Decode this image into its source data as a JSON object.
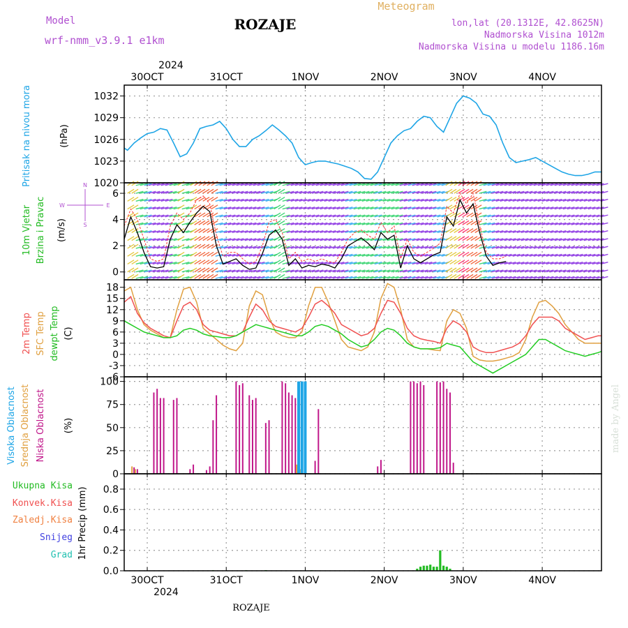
{
  "header": {
    "model_label": "Model",
    "model_name": "wrf-nmm_v3.9.1 e1km",
    "station": "ROZAJE",
    "product": "Meteogram",
    "coords": "lon,lat (20.1312E, 42.8625N)",
    "elevation": "Nadmorska Visina 1012m",
    "model_elevation": "Nadmorska Visina u modelu 1186.16m",
    "footer_station": "ROZAJE",
    "watermark": "made by Angel"
  },
  "time_axis": {
    "year": "2024",
    "day_labels": [
      "30OCT",
      "31OCT",
      "1NOV",
      "2NOV",
      "3NOV",
      "4NOV"
    ],
    "start_hour": -7,
    "end_hour": 138
  },
  "colors": {
    "pressure": "#1ea5e6",
    "wind_speed": "#000000",
    "wind_gust": "#ff3030",
    "temp_2m": "#f05050",
    "temp_sfc": "#e0a040",
    "dewpoint": "#22cc22",
    "cloud_high": "#1ea5e6",
    "cloud_mid": "#e0a040",
    "cloud_low": "#c0178a",
    "precip": "#22bb22",
    "grid": "#999999"
  },
  "labels": {
    "pressure": [
      "Pritisak na nivou mora",
      "(hPa)"
    ],
    "wind": [
      "10m Vjetar",
      "Brzina i Pravac",
      "(m/s)"
    ],
    "wind_compass": [
      "N",
      "W",
      "E",
      "S"
    ],
    "temp": [
      "2m Temp",
      "SFC Temp",
      "dewpt Temp",
      "(C)"
    ],
    "cloud": [
      "Visoka Oblacnost",
      "Srednja Oblacnost",
      "Niska Oblacnost",
      "(%)"
    ],
    "precip_legend": [
      "Ukupna Kisa",
      "Konvek.Kisa",
      "Zaledj.Kisa",
      "Snijeg",
      "Grad"
    ],
    "precip_axis": "1hr Precip (mm)"
  },
  "chart_data": [
    {
      "type": "line",
      "name": "pressure",
      "ylabel": "(hPa)",
      "ylim": [
        1020,
        1033.5
      ],
      "yticks": [
        1020,
        1023,
        1026,
        1029,
        1032
      ],
      "x": [
        -7,
        -6,
        -4,
        -2,
        0,
        2,
        4,
        6,
        8,
        10,
        12,
        14,
        16,
        18,
        20,
        22,
        24,
        26,
        28,
        30,
        32,
        34,
        36,
        38,
        40,
        42,
        44,
        46,
        48,
        50,
        52,
        54,
        56,
        58,
        60,
        62,
        64,
        66,
        68,
        70,
        72,
        74,
        76,
        78,
        80,
        82,
        84,
        86,
        88,
        90,
        92,
        94,
        96,
        98,
        100,
        102,
        104,
        106,
        108,
        110,
        112,
        114,
        116,
        118,
        120,
        122,
        124,
        126,
        128,
        130,
        132,
        134,
        136,
        138
      ],
      "values": [
        1024.8,
        1024.5,
        1025.5,
        1026.2,
        1026.8,
        1027.0,
        1027.5,
        1027.3,
        1025.5,
        1023.6,
        1024.0,
        1025.5,
        1027.5,
        1027.8,
        1028.0,
        1028.5,
        1027.5,
        1026.0,
        1025.0,
        1025.0,
        1026.0,
        1026.5,
        1027.2,
        1028.0,
        1027.3,
        1026.5,
        1025.5,
        1023.5,
        1022.5,
        1022.8,
        1023.0,
        1023.0,
        1022.8,
        1022.6,
        1022.3,
        1022.0,
        1021.5,
        1020.6,
        1020.5,
        1021.5,
        1023.5,
        1025.5,
        1026.5,
        1027.2,
        1027.5,
        1028.5,
        1029.2,
        1029.0,
        1027.8,
        1027.0,
        1029.0,
        1031.0,
        1032.0,
        1031.7,
        1031.0,
        1029.5,
        1029.2,
        1028.0,
        1025.5,
        1023.5,
        1022.8,
        1023.0,
        1023.2,
        1023.5,
        1023.0,
        1022.5,
        1022.0,
        1021.5,
        1021.2,
        1021.0,
        1021.0,
        1021.2,
        1021.5,
        1021.5
      ]
    },
    {
      "type": "line",
      "name": "wind",
      "ylabel": "(m/s)",
      "ylim": [
        -0.6,
        6.8
      ],
      "yticks": [
        0,
        2,
        4,
        6
      ],
      "x": [
        -7,
        -5,
        -3,
        -1,
        1,
        3,
        5,
        7,
        9,
        11,
        13,
        15,
        17,
        19,
        21,
        23,
        25,
        27,
        29,
        31,
        33,
        35,
        37,
        39,
        41,
        43,
        45,
        47,
        49,
        51,
        53,
        55,
        57,
        59,
        61,
        63,
        65,
        67,
        69,
        71,
        73,
        75,
        77,
        79,
        81,
        83,
        85,
        87,
        89,
        91,
        93,
        95,
        97,
        99,
        101,
        103,
        105,
        107,
        109
      ],
      "series": [
        {
          "values": [
            2.5,
            4.2,
            3.0,
            1.5,
            0.4,
            0.3,
            0.4,
            2.5,
            3.6,
            3.0,
            3.8,
            4.5,
            5.0,
            4.6,
            2.0,
            0.6,
            0.8,
            1.0,
            0.5,
            0.2,
            0.3,
            1.4,
            2.8,
            3.2,
            2.5,
            0.5,
            1.0,
            0.3,
            0.5,
            0.4,
            0.6,
            0.5,
            0.3,
            1.0,
            2.0,
            2.3,
            2.6,
            2.2,
            1.7,
            3.0,
            2.5,
            2.8,
            0.3,
            2.0,
            1.0,
            0.7,
            1.0,
            1.3,
            1.5,
            4.2,
            3.5,
            5.5,
            4.5,
            5.2,
            3.0,
            1.2,
            0.5,
            0.7,
            0.8
          ]
        },
        {
          "values": [
            3.5,
            4.8,
            4.0,
            2.5,
            1.0,
            0.8,
            1.0,
            3.5,
            4.5,
            4.0,
            4.5,
            5.5,
            5.8,
            5.2,
            2.8,
            1.2,
            1.5,
            1.5,
            1.0,
            0.6,
            0.8,
            2.0,
            3.8,
            4.0,
            3.0,
            1.0,
            1.5,
            0.8,
            1.0,
            0.8,
            1.0,
            0.8,
            0.7,
            1.5,
            2.5,
            3.0,
            3.2,
            2.8,
            2.5,
            3.8,
            3.0,
            3.5,
            1.0,
            2.5,
            1.5,
            1.2,
            1.5,
            1.8,
            2.2,
            5.0,
            4.5,
            6.0,
            5.2,
            6.0,
            3.5,
            1.5,
            1.0,
            1.0,
            1.2
          ]
        }
      ]
    },
    {
      "type": "line",
      "name": "temperature",
      "ylabel": "(C)",
      "ylim": [
        -6,
        20
      ],
      "yticks": [
        -6,
        -3,
        0,
        3,
        6,
        9,
        12,
        15,
        18
      ],
      "x": [
        -7,
        -5,
        -3,
        -1,
        1,
        3,
        5,
        7,
        9,
        11,
        13,
        15,
        17,
        19,
        21,
        23,
        25,
        27,
        29,
        31,
        33,
        35,
        37,
        39,
        41,
        43,
        45,
        47,
        49,
        51,
        53,
        55,
        57,
        59,
        61,
        63,
        65,
        67,
        69,
        71,
        73,
        75,
        77,
        79,
        81,
        83,
        85,
        87,
        89,
        91,
        93,
        95,
        97,
        99,
        101,
        103,
        105,
        107,
        109,
        111,
        113,
        115,
        117,
        119,
        121,
        123,
        125,
        127,
        129,
        131,
        133,
        135,
        137,
        138
      ],
      "series": [
        {
          "values": [
            14,
            15.5,
            11,
            8.5,
            7,
            6,
            5,
            4.5,
            9,
            13,
            14,
            12,
            8,
            6.5,
            6,
            5.5,
            5,
            5,
            6,
            10,
            13.5,
            12,
            9,
            7.5,
            7,
            6.5,
            6,
            7,
            10,
            13.5,
            14.5,
            13,
            11,
            8,
            7,
            6,
            5,
            5.5,
            7,
            11,
            14.5,
            14,
            11,
            7,
            5,
            4.2,
            3.8,
            3.5,
            3,
            7,
            9,
            8,
            6,
            2,
            1,
            0.5,
            0.5,
            1,
            1.5,
            2,
            3,
            5,
            8,
            10,
            10,
            10,
            9,
            7,
            6,
            5,
            4,
            4.5,
            5,
            5
          ]
        },
        {
          "values": [
            17,
            18,
            12,
            8,
            6.5,
            5.5,
            4.5,
            4.5,
            12,
            17.5,
            18,
            14,
            7,
            5.5,
            4,
            2.5,
            1.5,
            1,
            3,
            13,
            17,
            16,
            10,
            6,
            5,
            4.5,
            4.5,
            6,
            13,
            18,
            18,
            14,
            9,
            4,
            2,
            1.5,
            1,
            2,
            6,
            15,
            19,
            18,
            12,
            4,
            2,
            1.5,
            1.5,
            1.2,
            1,
            9,
            12,
            11,
            7,
            -0.5,
            -1.5,
            -1.8,
            -1.8,
            -1.5,
            -1,
            -0.5,
            0.5,
            4,
            10,
            14,
            14.5,
            13,
            11,
            8,
            6,
            4,
            3,
            3,
            3,
            3
          ]
        },
        {
          "values": [
            9,
            8,
            7,
            6,
            5.5,
            5,
            4.5,
            4.5,
            5,
            6.5,
            7,
            6.5,
            5.5,
            5,
            4.8,
            4.5,
            4.5,
            5,
            6,
            7,
            8,
            7.5,
            7,
            6.5,
            6,
            5.5,
            5,
            5,
            6,
            7.5,
            8,
            7.5,
            6.5,
            5.5,
            4,
            3,
            2,
            2.5,
            4,
            6,
            7,
            6.5,
            5,
            3,
            2,
            1.5,
            1.5,
            1.5,
            1.8,
            3,
            2.5,
            2,
            0,
            -2,
            -3,
            -4,
            -5,
            -4,
            -3,
            -2,
            -1,
            0,
            2,
            4,
            4,
            3,
            2,
            1,
            0.5,
            0,
            -0.5,
            0,
            0.5,
            0.8
          ]
        }
      ]
    },
    {
      "type": "bar",
      "name": "cloud_cover",
      "ylabel": "(%)",
      "ylim": [
        0,
        105
      ],
      "yticks": [
        0,
        25,
        50,
        75,
        100
      ],
      "series": [
        {
          "x": [
            -4,
            -3,
            2,
            3,
            4,
            5,
            8,
            9,
            13,
            14,
            18,
            19,
            20,
            21,
            27,
            28,
            29,
            31,
            32,
            33,
            36,
            37,
            41,
            42,
            43,
            44,
            45,
            46,
            51,
            52,
            70,
            71,
            80,
            81,
            82,
            83,
            84,
            88,
            89,
            90,
            91,
            92,
            93
          ],
          "values": [
            7,
            5,
            88,
            92,
            82,
            82,
            80,
            82,
            5,
            10,
            4,
            8,
            58,
            85,
            100,
            96,
            98,
            85,
            80,
            82,
            55,
            58,
            100,
            98,
            88,
            85,
            82,
            8,
            14,
            70,
            8,
            15,
            100,
            100,
            98,
            100,
            96,
            100,
            99,
            100,
            92,
            88,
            12
          ]
        },
        {
          "x": [
            -4,
            -3,
            46,
            47
          ],
          "values": [
            8,
            5,
            10,
            5
          ]
        },
        {
          "x": [
            46,
            47,
            48
          ],
          "values": [
            100,
            100,
            100
          ]
        }
      ]
    },
    {
      "type": "bar",
      "name": "precipitation",
      "ylabel": "1hr Precip (mm)",
      "ylim": [
        0,
        0.95
      ],
      "yticks": [
        0,
        0.2,
        0.4,
        0.6,
        0.8
      ],
      "x": [
        20,
        30,
        36,
        50,
        82,
        83,
        84,
        85,
        86,
        87,
        88,
        89,
        90,
        91,
        92
      ],
      "values": [
        0.005,
        0.005,
        0.006,
        0.005,
        0.02,
        0.04,
        0.05,
        0.05,
        0.06,
        0.04,
        0.04,
        0.2,
        0.05,
        0.04,
        0.02
      ]
    }
  ]
}
